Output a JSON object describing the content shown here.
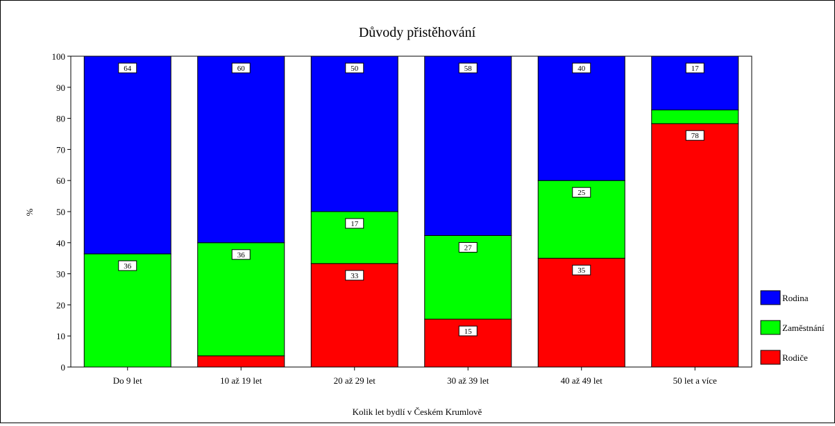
{
  "chart_data": {
    "type": "bar",
    "stacked": true,
    "percent_stacked": true,
    "title": "Důvody přistěhování",
    "xlabel": "Kolik let bydlí v Českém Krumlově",
    "ylabel": "%",
    "ylim": [
      0,
      100
    ],
    "yticks": [
      0,
      10,
      20,
      30,
      40,
      50,
      60,
      70,
      80,
      90,
      100
    ],
    "grid": false,
    "legend_position": "right",
    "categories": [
      "Do 9 let",
      "10 až 19 let",
      "20 až 29 let",
      "30 až 39 let",
      "40 až 49 let",
      "50 let a více"
    ],
    "series": [
      {
        "name": "Rodiče",
        "color": "#ff0000",
        "values": [
          0,
          3.6,
          33.3,
          15.4,
          35,
          78.3
        ],
        "labels": [
          "",
          "",
          "33",
          "15",
          "35",
          "78"
        ]
      },
      {
        "name": "Zaměstnání",
        "color": "#00ff00",
        "values": [
          36.4,
          36.4,
          16.7,
          26.9,
          25,
          4.4
        ],
        "labels": [
          "36",
          "36",
          "17",
          "27",
          "25",
          ""
        ]
      },
      {
        "name": "Rodina",
        "color": "#0000ff",
        "values": [
          63.6,
          60,
          50,
          57.7,
          40,
          17.3
        ],
        "labels": [
          "64",
          "60",
          "50",
          "58",
          "40",
          "17"
        ]
      }
    ]
  }
}
